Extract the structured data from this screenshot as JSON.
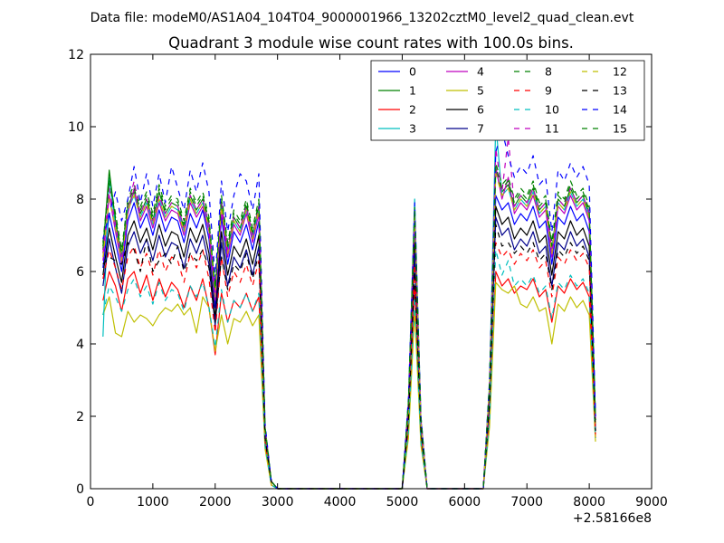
{
  "chart_data": {
    "type": "line",
    "suptitle": "Data file: modeM0/AS1A04_104T04_9000001966_13202cztM0_level2_quad_clean.evt",
    "title": "Quadrant 3 module wise count rates with 100.0s bins.",
    "xlabel": "",
    "ylabel": "",
    "x_offset_label": "+2.58166e8",
    "xlim": [
      0,
      9000
    ],
    "ylim": [
      0,
      12
    ],
    "xticks": [
      0,
      1000,
      2000,
      3000,
      4000,
      5000,
      6000,
      7000,
      8000,
      9000
    ],
    "yticks": [
      0,
      2,
      4,
      6,
      8,
      10,
      12
    ],
    "grid": false,
    "legend_position": "top-right",
    "legend_columns": 4,
    "x": [
      200,
      300,
      400,
      500,
      600,
      700,
      800,
      900,
      1000,
      1100,
      1200,
      1300,
      1400,
      1500,
      1600,
      1700,
      1800,
      1900,
      2000,
      2100,
      2200,
      2300,
      2400,
      2500,
      2600,
      2700,
      2800,
      2900,
      3000,
      5000,
      5100,
      5200,
      5300,
      5400,
      6300,
      6400,
      6500,
      6600,
      6700,
      6800,
      6900,
      7000,
      7100,
      7200,
      7300,
      7400,
      7500,
      7600,
      7700,
      7800,
      7900,
      8000,
      8100
    ],
    "series": [
      {
        "name": "0",
        "color": "#0000ff",
        "style": "solid",
        "values": [
          6.1,
          7.6,
          6.8,
          6.0,
          7.4,
          7.9,
          7.2,
          7.6,
          7.0,
          7.7,
          7.1,
          7.5,
          7.4,
          6.8,
          7.6,
          7.2,
          7.7,
          6.9,
          5.0,
          7.5,
          6.2,
          7.1,
          6.8,
          7.3,
          6.6,
          7.4,
          1.5,
          0.2,
          0.0,
          0.0,
          2.1,
          7.2,
          1.8,
          0.0,
          0.0,
          2.6,
          8.1,
          7.7,
          7.9,
          7.3,
          7.6,
          7.4,
          7.8,
          7.2,
          7.4,
          6.2,
          7.5,
          7.3,
          7.8,
          7.4,
          7.6,
          7.1,
          1.8
        ]
      },
      {
        "name": "1",
        "color": "#008000",
        "style": "solid",
        "values": [
          6.6,
          8.8,
          7.4,
          6.4,
          7.8,
          8.2,
          7.6,
          8.0,
          7.4,
          8.2,
          7.6,
          7.9,
          7.8,
          7.2,
          8.1,
          7.7,
          8.0,
          7.3,
          5.4,
          7.9,
          6.6,
          7.5,
          7.2,
          7.8,
          7.0,
          7.8,
          1.6,
          0.2,
          0.0,
          0.0,
          2.3,
          7.6,
          1.9,
          0.0,
          0.0,
          2.8,
          8.8,
          8.2,
          8.4,
          7.8,
          8.1,
          7.9,
          8.3,
          7.7,
          7.9,
          6.6,
          8.0,
          7.8,
          8.3,
          7.9,
          8.1,
          7.6,
          1.9
        ]
      },
      {
        "name": "2",
        "color": "#ff0000",
        "style": "solid",
        "values": [
          5.2,
          6.0,
          5.6,
          4.9,
          5.8,
          6.0,
          5.4,
          5.9,
          5.2,
          5.8,
          5.3,
          5.7,
          5.5,
          5.0,
          5.6,
          5.2,
          5.8,
          5.0,
          3.7,
          5.4,
          4.6,
          5.2,
          5.0,
          5.4,
          4.9,
          5.3,
          1.2,
          0.1,
          0.0,
          0.0,
          1.6,
          5.6,
          1.4,
          0.0,
          0.0,
          1.9,
          6.0,
          5.6,
          5.8,
          5.4,
          5.6,
          5.5,
          5.8,
          5.3,
          5.5,
          4.6,
          5.6,
          5.4,
          5.8,
          5.5,
          5.7,
          5.3,
          1.4
        ]
      },
      {
        "name": "3",
        "color": "#00bfbf",
        "style": "solid",
        "values": [
          4.2,
          8.6,
          7.2,
          6.3,
          7.7,
          8.1,
          7.5,
          7.9,
          7.3,
          8.0,
          7.5,
          7.8,
          7.7,
          7.1,
          8.0,
          7.6,
          7.9,
          7.2,
          5.3,
          7.8,
          6.5,
          7.4,
          7.1,
          7.7,
          6.9,
          7.7,
          1.6,
          0.2,
          0.0,
          0.0,
          2.3,
          8.0,
          1.9,
          0.0,
          0.0,
          2.9,
          10.1,
          8.1,
          8.3,
          7.7,
          8.0,
          7.8,
          8.2,
          7.6,
          7.8,
          6.5,
          7.9,
          7.7,
          8.2,
          7.8,
          8.0,
          7.5,
          1.9
        ]
      },
      {
        "name": "4",
        "color": "#bf00bf",
        "style": "solid",
        "values": [
          6.3,
          8.1,
          7.1,
          6.2,
          7.6,
          8.3,
          7.4,
          7.8,
          7.2,
          7.9,
          7.4,
          7.7,
          7.6,
          7.0,
          7.9,
          7.5,
          7.8,
          7.1,
          5.2,
          7.7,
          6.4,
          7.3,
          7.0,
          7.6,
          6.8,
          7.6,
          1.5,
          0.2,
          0.0,
          0.0,
          2.2,
          7.5,
          1.8,
          0.0,
          0.0,
          2.7,
          8.9,
          8.0,
          8.6,
          7.6,
          7.9,
          7.7,
          8.1,
          7.5,
          7.7,
          6.4,
          7.8,
          7.6,
          8.1,
          7.7,
          7.9,
          7.4,
          1.8
        ]
      },
      {
        "name": "5",
        "color": "#bfbf00",
        "style": "solid",
        "values": [
          4.8,
          5.3,
          4.3,
          4.2,
          4.9,
          4.6,
          4.8,
          4.7,
          4.5,
          4.8,
          5.0,
          4.9,
          5.1,
          4.8,
          5.0,
          4.3,
          5.3,
          5.0,
          3.8,
          4.8,
          4.0,
          4.7,
          4.6,
          4.9,
          4.5,
          4.8,
          1.1,
          0.1,
          0.0,
          0.0,
          1.4,
          4.9,
          1.2,
          0.0,
          0.0,
          1.7,
          5.7,
          5.5,
          5.4,
          5.6,
          5.1,
          5.0,
          5.3,
          4.9,
          5.0,
          4.0,
          5.1,
          4.9,
          5.3,
          5.0,
          5.2,
          4.8,
          1.3
        ]
      },
      {
        "name": "6",
        "color": "#000000",
        "style": "solid",
        "values": [
          5.9,
          7.2,
          6.4,
          5.7,
          7.0,
          7.4,
          6.8,
          7.2,
          6.6,
          7.3,
          6.7,
          7.1,
          7.0,
          6.4,
          7.2,
          6.8,
          7.3,
          6.5,
          4.7,
          7.1,
          5.9,
          6.7,
          6.4,
          6.9,
          6.2,
          7.0,
          1.4,
          0.2,
          0.0,
          0.0,
          2.0,
          6.8,
          1.7,
          0.0,
          0.0,
          2.5,
          7.8,
          7.3,
          7.5,
          6.9,
          7.2,
          7.0,
          7.4,
          6.8,
          7.0,
          5.9,
          7.1,
          6.9,
          7.4,
          7.0,
          7.2,
          6.7,
          1.6
        ]
      },
      {
        "name": "7",
        "color": "#00008b",
        "style": "solid",
        "values": [
          5.6,
          6.9,
          6.1,
          5.4,
          6.7,
          7.1,
          6.5,
          6.9,
          6.3,
          7.0,
          6.4,
          6.8,
          6.7,
          6.1,
          6.9,
          6.5,
          7.0,
          6.2,
          4.5,
          6.8,
          5.6,
          6.4,
          6.1,
          6.6,
          5.9,
          6.7,
          1.4,
          0.2,
          0.0,
          0.0,
          1.9,
          6.5,
          1.6,
          0.0,
          0.0,
          2.4,
          7.5,
          7.0,
          7.2,
          6.6,
          6.9,
          6.7,
          7.1,
          6.5,
          6.7,
          5.6,
          6.8,
          6.6,
          7.1,
          6.7,
          6.9,
          6.4,
          1.6
        ]
      },
      {
        "name": "8",
        "color": "#008000",
        "style": "dashed",
        "values": [
          6.8,
          8.6,
          7.6,
          6.6,
          8.0,
          8.4,
          7.8,
          8.2,
          7.6,
          8.4,
          7.8,
          8.1,
          8.0,
          7.4,
          8.3,
          7.9,
          8.2,
          7.5,
          5.6,
          8.1,
          6.8,
          7.7,
          7.4,
          8.0,
          7.2,
          8.0,
          1.7,
          0.2,
          0.0,
          0.0,
          2.4,
          7.8,
          2.0,
          0.0,
          0.0,
          2.9,
          9.0,
          8.4,
          8.6,
          8.0,
          8.3,
          8.1,
          8.5,
          7.9,
          8.1,
          6.8,
          8.2,
          8.0,
          8.5,
          8.1,
          8.3,
          7.8,
          2.0
        ]
      },
      {
        "name": "9",
        "color": "#ff0000",
        "style": "dashed",
        "values": [
          5.8,
          6.6,
          6.1,
          5.5,
          6.4,
          6.7,
          6.1,
          6.5,
          5.9,
          6.6,
          6.0,
          6.4,
          6.3,
          5.7,
          6.5,
          6.1,
          6.6,
          5.8,
          4.3,
          6.4,
          5.3,
          6.0,
          5.7,
          6.2,
          5.6,
          6.3,
          1.3,
          0.2,
          0.0,
          0.0,
          1.8,
          6.2,
          1.5,
          0.0,
          0.0,
          2.2,
          6.8,
          6.4,
          6.6,
          6.2,
          6.5,
          6.3,
          6.6,
          6.1,
          6.3,
          5.3,
          6.4,
          6.2,
          6.6,
          6.3,
          6.5,
          6.1,
          1.5
        ]
      },
      {
        "name": "10",
        "color": "#00bfbf",
        "style": "dashed",
        "values": [
          4.8,
          5.6,
          5.3,
          4.9,
          5.5,
          5.8,
          5.3,
          5.6,
          5.1,
          5.7,
          5.2,
          5.5,
          5.4,
          4.9,
          5.6,
          5.3,
          5.7,
          5.0,
          3.9,
          5.5,
          4.6,
          5.2,
          5.0,
          5.4,
          4.9,
          5.4,
          1.2,
          0.1,
          0.0,
          0.0,
          1.6,
          5.3,
          1.3,
          0.0,
          0.0,
          1.9,
          6.6,
          5.9,
          6.3,
          5.6,
          5.8,
          5.6,
          5.9,
          5.4,
          5.6,
          4.7,
          5.7,
          5.5,
          5.9,
          5.6,
          5.8,
          5.4,
          1.4
        ]
      },
      {
        "name": "11",
        "color": "#bf00bf",
        "style": "dashed",
        "values": [
          6.5,
          8.3,
          7.3,
          6.4,
          7.8,
          8.5,
          7.6,
          8.0,
          7.4,
          8.1,
          7.6,
          7.9,
          7.8,
          7.2,
          8.1,
          7.7,
          8.0,
          7.3,
          5.4,
          7.9,
          6.6,
          7.5,
          7.2,
          7.8,
          7.0,
          7.8,
          1.6,
          0.2,
          0.0,
          0.0,
          2.3,
          7.7,
          1.9,
          0.0,
          0.0,
          2.8,
          9.4,
          8.2,
          9.7,
          7.8,
          8.1,
          7.9,
          8.3,
          7.7,
          7.9,
          6.6,
          8.0,
          7.8,
          8.3,
          7.9,
          8.1,
          7.6,
          1.9
        ]
      },
      {
        "name": "12",
        "color": "#bfbf00",
        "style": "dashed",
        "values": [
          6.4,
          8.0,
          7.2,
          6.3,
          7.7,
          8.1,
          7.5,
          7.9,
          7.3,
          8.0,
          7.5,
          7.8,
          7.7,
          7.1,
          8.0,
          7.6,
          7.9,
          7.2,
          5.3,
          7.8,
          6.5,
          7.4,
          7.1,
          7.7,
          6.9,
          7.7,
          1.6,
          0.2,
          0.0,
          0.0,
          2.2,
          7.6,
          1.8,
          0.0,
          0.0,
          2.8,
          8.7,
          8.1,
          8.3,
          7.7,
          8.0,
          7.8,
          8.2,
          7.6,
          7.8,
          6.5,
          7.9,
          7.7,
          8.2,
          7.8,
          8.0,
          7.5,
          1.8
        ]
      },
      {
        "name": "13",
        "color": "#000000",
        "style": "dashed",
        "values": [
          6.2,
          6.4,
          6.3,
          6.2,
          6.8,
          6.6,
          6.0,
          6.9,
          6.0,
          6.3,
          6.5,
          6.2,
          6.7,
          6.0,
          6.5,
          6.3,
          6.6,
          6.1,
          4.6,
          6.4,
          5.5,
          6.2,
          6.0,
          6.5,
          5.8,
          6.5,
          1.4,
          0.2,
          0.0,
          0.0,
          1.9,
          6.0,
          1.6,
          0.0,
          0.0,
          2.3,
          7.3,
          6.7,
          6.8,
          6.5,
          6.7,
          6.5,
          6.8,
          6.3,
          6.5,
          5.5,
          6.6,
          6.4,
          6.8,
          6.5,
          6.7,
          6.3,
          1.6
        ]
      },
      {
        "name": "14",
        "color": "#0000ff",
        "style": "dashed",
        "values": [
          6.9,
          7.6,
          8.2,
          7.4,
          8.0,
          8.9,
          7.9,
          8.7,
          7.8,
          8.7,
          7.9,
          8.9,
          8.3,
          7.7,
          8.8,
          8.2,
          9.0,
          8.2,
          5.8,
          8.5,
          7.1,
          8.1,
          8.7,
          8.5,
          7.7,
          8.7,
          1.8,
          0.2,
          0.0,
          0.0,
          2.5,
          7.9,
          2.0,
          0.0,
          0.0,
          3.0,
          9.3,
          9.9,
          9.2,
          8.6,
          8.9,
          8.7,
          9.2,
          8.4,
          8.6,
          7.1,
          8.8,
          8.5,
          9.0,
          8.6,
          8.9,
          8.4,
          2.0
        ]
      },
      {
        "name": "15",
        "color": "#008000",
        "style": "dashed",
        "values": [
          6.7,
          8.5,
          7.5,
          6.5,
          7.9,
          8.3,
          7.7,
          8.1,
          7.5,
          8.3,
          7.7,
          8.0,
          7.9,
          7.3,
          8.2,
          7.8,
          8.1,
          7.4,
          5.5,
          8.0,
          6.7,
          7.6,
          7.3,
          7.9,
          7.1,
          7.9,
          1.7,
          0.2,
          0.0,
          0.0,
          2.4,
          7.7,
          1.9,
          0.0,
          0.0,
          2.9,
          8.9,
          8.3,
          8.5,
          7.9,
          8.2,
          8.0,
          8.4,
          7.8,
          8.0,
          6.7,
          8.1,
          7.9,
          8.4,
          8.0,
          8.2,
          7.7,
          1.9
        ]
      }
    ]
  }
}
